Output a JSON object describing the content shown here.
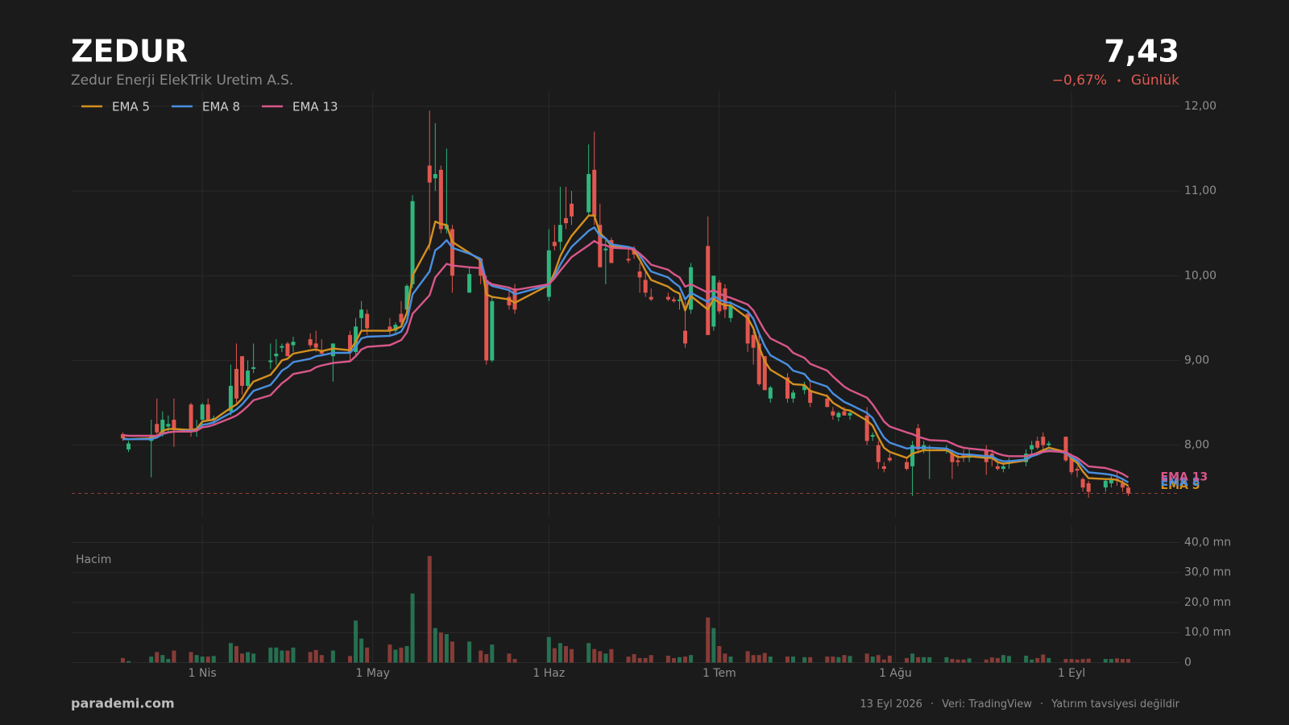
{
  "header": {
    "symbol": "ZEDUR",
    "company": "Zedur Enerji ElekTrik Uretim A.S.",
    "price": "7,43",
    "change": "−0,67%",
    "period": "Günlük"
  },
  "footer": {
    "brand": "parademi.com",
    "date": "13 Eyl 2026",
    "source": "Veri: TradingView",
    "disclaimer": "Yatırım tavsiyesi değildir"
  },
  "chart_data": {
    "type": "candlestick",
    "up_color": "#2fb67d",
    "down_color": "#e0574f",
    "grid": true,
    "x": [
      "2026-03-18",
      "2026-03-19",
      "2026-03-23",
      "2026-03-24",
      "2026-03-25",
      "2026-03-26",
      "2026-03-27",
      "2026-03-30",
      "2026-03-31",
      "2026-04-01",
      "2026-04-02",
      "2026-04-03",
      "2026-04-06",
      "2026-04-07",
      "2026-04-08",
      "2026-04-09",
      "2026-04-10",
      "2026-04-13",
      "2026-04-14",
      "2026-04-15",
      "2026-04-16",
      "2026-04-17",
      "2026-04-20",
      "2026-04-21",
      "2026-04-22",
      "2026-04-24",
      "2026-04-27",
      "2026-04-28",
      "2026-04-29",
      "2026-04-30",
      "2026-05-04",
      "2026-05-05",
      "2026-05-06",
      "2026-05-07",
      "2026-05-08",
      "2026-05-11",
      "2026-05-12",
      "2026-05-13",
      "2026-05-14",
      "2026-05-15",
      "2026-05-18",
      "2026-05-20",
      "2026-05-21",
      "2026-05-22",
      "2026-05-25",
      "2026-05-26",
      "2026-06-01",
      "2026-06-02",
      "2026-06-03",
      "2026-06-04",
      "2026-06-05",
      "2026-06-08",
      "2026-06-09",
      "2026-06-10",
      "2026-06-11",
      "2026-06-12",
      "2026-06-15",
      "2026-06-16",
      "2026-06-17",
      "2026-06-18",
      "2026-06-19",
      "2026-06-22",
      "2026-06-23",
      "2026-06-24",
      "2026-06-25",
      "2026-06-26",
      "2026-06-29",
      "2026-06-30",
      "2026-07-01",
      "2026-07-02",
      "2026-07-03",
      "2026-07-06",
      "2026-07-07",
      "2026-07-08",
      "2026-07-09",
      "2026-07-10",
      "2026-07-13",
      "2026-07-14",
      "2026-07-16",
      "2026-07-17",
      "2026-07-20",
      "2026-07-21",
      "2026-07-22",
      "2026-07-23",
      "2026-07-24",
      "2026-07-27",
      "2026-07-28",
      "2026-07-29",
      "2026-07-30",
      "2026-07-31",
      "2026-08-03",
      "2026-08-04",
      "2026-08-05",
      "2026-08-06",
      "2026-08-07",
      "2026-08-10",
      "2026-08-11",
      "2026-08-12",
      "2026-08-13",
      "2026-08-14",
      "2026-08-17",
      "2026-08-18",
      "2026-08-19",
      "2026-08-20",
      "2026-08-21",
      "2026-08-24",
      "2026-08-25",
      "2026-08-26",
      "2026-08-27",
      "2026-08-28",
      "2026-08-31",
      "2026-09-01",
      "2026-09-02",
      "2026-09-03",
      "2026-09-04",
      "2026-09-07",
      "2026-09-08",
      "2026-09-09",
      "2026-09-10",
      "2026-09-11"
    ],
    "open": [
      8.13,
      7.95,
      8.05,
      8.25,
      8.15,
      8.22,
      8.3,
      8.48,
      8.2,
      8.3,
      8.48,
      8.3,
      8.4,
      8.9,
      9.05,
      8.7,
      8.9,
      8.98,
      9.05,
      9.15,
      9.2,
      9.18,
      9.25,
      9.2,
      9.12,
      9.05,
      9.3,
      9.1,
      9.5,
      9.55,
      9.4,
      9.35,
      9.55,
      9.6,
      9.9,
      11.3,
      11.15,
      11.25,
      10.55,
      10.55,
      9.8,
      10.2,
      9.95,
      9.0,
      9.75,
      9.85,
      9.75,
      10.4,
      10.4,
      10.68,
      10.85,
      10.75,
      11.25,
      10.6,
      10.3,
      10.42,
      10.2,
      10.3,
      10.05,
      9.95,
      9.75,
      9.75,
      9.72,
      9.7,
      9.35,
      9.6,
      10.35,
      9.4,
      9.92,
      9.85,
      9.5,
      9.55,
      9.3,
      9.2,
      9.05,
      8.55,
      8.8,
      8.55,
      8.65,
      8.65,
      8.55,
      8.4,
      8.33,
      8.4,
      8.35,
      8.35,
      8.1,
      8.0,
      7.75,
      7.85,
      7.8,
      7.75,
      8.2,
      7.95,
      7.95,
      7.95,
      7.9,
      7.82,
      7.88,
      7.85,
      7.95,
      7.9,
      7.75,
      7.72,
      7.78,
      7.8,
      7.95,
      8.05,
      8.1,
      8.0,
      8.1,
      7.85,
      7.72,
      7.6,
      7.55,
      7.5,
      7.55,
      7.6,
      7.55,
      7.5
    ],
    "high": [
      8.15,
      8.05,
      8.3,
      8.55,
      8.4,
      8.35,
      8.55,
      8.5,
      8.3,
      8.5,
      8.55,
      8.35,
      8.95,
      9.2,
      9.05,
      9.0,
      9.2,
      9.2,
      9.25,
      9.2,
      9.22,
      9.28,
      9.32,
      9.35,
      9.25,
      9.2,
      9.35,
      9.5,
      9.7,
      9.6,
      9.5,
      9.45,
      9.7,
      9.9,
      10.95,
      11.95,
      11.8,
      11.3,
      11.5,
      10.6,
      10.1,
      10.2,
      10.0,
      9.75,
      9.85,
      9.9,
      10.55,
      10.6,
      11.05,
      11.05,
      11.0,
      11.55,
      11.7,
      10.85,
      10.45,
      10.45,
      10.35,
      10.35,
      10.15,
      10.05,
      9.85,
      9.8,
      9.75,
      9.8,
      9.7,
      10.15,
      10.7,
      10.0,
      9.95,
      9.9,
      9.7,
      9.6,
      9.35,
      9.3,
      9.05,
      8.7,
      8.85,
      8.65,
      8.75,
      8.75,
      8.6,
      8.45,
      8.4,
      8.45,
      8.4,
      8.45,
      8.15,
      8.05,
      7.8,
      7.9,
      7.85,
      8.05,
      8.25,
      8.05,
      8.0,
      8.0,
      7.95,
      7.9,
      7.95,
      7.95,
      8.0,
      7.95,
      7.8,
      7.8,
      7.85,
      7.95,
      8.05,
      8.1,
      8.15,
      8.05,
      8.1,
      7.9,
      7.75,
      7.62,
      7.58,
      7.6,
      7.65,
      7.68,
      7.6,
      7.52
    ],
    "low": [
      8.05,
      7.92,
      7.62,
      8.1,
      8.1,
      8.15,
      7.98,
      8.1,
      8.1,
      8.2,
      8.3,
      8.25,
      8.35,
      8.5,
      8.6,
      8.65,
      8.85,
      8.9,
      8.95,
      9.1,
      9.05,
      9.1,
      9.15,
      9.1,
      9.05,
      8.75,
      9.0,
      9.05,
      9.35,
      9.3,
      9.3,
      9.3,
      9.4,
      9.55,
      9.85,
      10.3,
      11.0,
      10.5,
      10.5,
      9.8,
      9.8,
      9.9,
      8.95,
      8.98,
      9.6,
      9.55,
      9.7,
      10.3,
      10.3,
      10.55,
      10.6,
      10.7,
      10.6,
      10.1,
      9.9,
      10.15,
      10.15,
      10.2,
      9.8,
      9.75,
      9.7,
      9.7,
      9.68,
      9.6,
      9.15,
      9.55,
      9.3,
      9.35,
      9.55,
      9.5,
      9.45,
      9.1,
      8.95,
      8.7,
      8.65,
      8.5,
      8.5,
      8.5,
      8.6,
      8.45,
      8.45,
      8.3,
      8.28,
      8.35,
      8.3,
      8.0,
      8.05,
      7.72,
      7.68,
      7.8,
      7.7,
      7.4,
      7.9,
      7.9,
      7.6,
      7.9,
      7.6,
      7.75,
      7.8,
      7.8,
      7.65,
      7.75,
      7.7,
      7.68,
      7.72,
      7.75,
      7.9,
      7.95,
      7.95,
      7.98,
      7.8,
      7.65,
      7.62,
      7.45,
      7.38,
      7.45,
      7.5,
      7.52,
      7.45,
      7.4
    ],
    "close": [
      8.08,
      8.02,
      8.12,
      8.15,
      8.3,
      8.25,
      8.18,
      8.18,
      8.2,
      8.48,
      8.3,
      8.32,
      8.7,
      8.55,
      8.7,
      8.88,
      8.92,
      9.0,
      9.08,
      9.17,
      9.05,
      9.22,
      9.18,
      9.15,
      9.08,
      9.2,
      9.1,
      9.4,
      9.6,
      9.38,
      9.35,
      9.42,
      9.45,
      9.88,
      10.88,
      11.1,
      11.2,
      10.55,
      10.6,
      10.0,
      10.02,
      10.0,
      9.0,
      9.7,
      9.65,
      9.6,
      10.3,
      10.35,
      10.6,
      10.62,
      10.7,
      11.2,
      10.7,
      10.1,
      10.32,
      10.15,
      10.18,
      10.25,
      9.98,
      9.8,
      9.72,
      9.72,
      9.7,
      9.72,
      9.2,
      10.1,
      9.3,
      10.0,
      9.58,
      9.6,
      9.65,
      9.2,
      9.15,
      8.72,
      8.65,
      8.68,
      8.55,
      8.62,
      8.7,
      8.5,
      8.45,
      8.35,
      8.38,
      8.35,
      8.38,
      8.05,
      8.12,
      7.8,
      7.72,
      7.82,
      7.72,
      8.0,
      7.95,
      8.0,
      7.95,
      7.95,
      7.8,
      7.8,
      7.85,
      7.9,
      7.8,
      7.85,
      7.72,
      7.75,
      7.8,
      7.9,
      8.0,
      7.97,
      8.0,
      8.02,
      7.82,
      7.68,
      7.7,
      7.5,
      7.45,
      7.58,
      7.6,
      7.58,
      7.5,
      7.43
    ],
    "series": [
      {
        "name": "EMA 5",
        "color": "#d4901f",
        "values": [
          8.08,
          8.07,
          8.08,
          8.1,
          8.17,
          8.19,
          8.19,
          8.18,
          8.19,
          8.28,
          8.29,
          8.3,
          8.44,
          8.48,
          8.55,
          8.66,
          8.75,
          8.83,
          8.91,
          9.0,
          9.02,
          9.08,
          9.12,
          9.13,
          9.11,
          9.14,
          9.12,
          9.22,
          9.35,
          9.35,
          9.35,
          9.37,
          9.4,
          9.56,
          10.0,
          10.37,
          10.64,
          10.61,
          10.6,
          10.4,
          10.27,
          10.18,
          9.78,
          9.75,
          9.72,
          9.68,
          9.89,
          10.04,
          10.23,
          10.36,
          10.47,
          10.71,
          10.71,
          10.5,
          10.44,
          10.35,
          10.33,
          10.3,
          10.19,
          10.06,
          9.95,
          9.87,
          9.82,
          9.79,
          9.59,
          9.76,
          9.6,
          9.73,
          9.68,
          9.65,
          9.65,
          9.5,
          9.38,
          9.16,
          8.99,
          8.89,
          8.77,
          8.72,
          8.71,
          8.64,
          8.58,
          8.5,
          8.46,
          8.42,
          8.41,
          8.29,
          8.23,
          8.09,
          7.97,
          7.92,
          7.85,
          7.9,
          7.92,
          7.94,
          7.94,
          7.94,
          7.9,
          7.86,
          7.86,
          7.87,
          7.85,
          7.85,
          7.8,
          7.78,
          7.79,
          7.82,
          7.88,
          7.91,
          7.94,
          7.97,
          7.92,
          7.84,
          7.79,
          7.69,
          7.61,
          7.6,
          7.6,
          7.59,
          7.56,
          7.52
        ]
      },
      {
        "name": "EMA 8",
        "color": "#4a8fe0",
        "values": [
          8.07,
          8.07,
          8.07,
          8.09,
          8.13,
          8.15,
          8.16,
          8.17,
          8.17,
          8.24,
          8.25,
          8.27,
          8.38,
          8.42,
          8.48,
          8.56,
          8.64,
          8.71,
          8.79,
          8.88,
          8.92,
          8.98,
          9.02,
          9.05,
          9.06,
          9.09,
          9.09,
          9.16,
          9.26,
          9.28,
          9.29,
          9.31,
          9.34,
          9.46,
          9.78,
          10.05,
          10.3,
          10.35,
          10.42,
          10.33,
          10.26,
          10.2,
          9.93,
          9.88,
          9.83,
          9.78,
          9.89,
          9.99,
          10.13,
          10.24,
          10.34,
          10.53,
          10.57,
          10.47,
          10.44,
          10.37,
          10.34,
          10.32,
          10.24,
          10.14,
          10.05,
          9.98,
          9.92,
          9.87,
          9.72,
          9.8,
          9.69,
          9.76,
          9.72,
          9.69,
          9.68,
          9.58,
          9.49,
          9.32,
          9.17,
          9.06,
          8.95,
          8.88,
          8.84,
          8.76,
          8.69,
          8.61,
          8.56,
          8.51,
          8.48,
          8.38,
          8.32,
          8.2,
          8.09,
          8.03,
          7.96,
          7.97,
          7.97,
          7.97,
          7.97,
          7.96,
          7.93,
          7.9,
          7.89,
          7.89,
          7.87,
          7.87,
          7.83,
          7.81,
          7.81,
          7.83,
          7.87,
          7.89,
          7.92,
          7.94,
          7.91,
          7.86,
          7.82,
          7.75,
          7.68,
          7.66,
          7.65,
          7.63,
          7.6,
          7.56
        ]
      },
      {
        "name": "EMA 13",
        "color": "#d9578a",
        "values": [
          8.12,
          8.11,
          8.11,
          8.11,
          8.14,
          8.15,
          8.16,
          8.16,
          8.17,
          8.21,
          8.22,
          8.24,
          8.32,
          8.35,
          8.4,
          8.46,
          8.53,
          8.59,
          8.66,
          8.73,
          8.78,
          8.84,
          8.88,
          8.92,
          8.94,
          8.97,
          8.99,
          9.05,
          9.13,
          9.16,
          9.18,
          9.21,
          9.24,
          9.33,
          9.55,
          9.77,
          9.98,
          10.06,
          10.14,
          10.12,
          10.1,
          10.09,
          9.94,
          9.9,
          9.86,
          9.83,
          9.9,
          9.97,
          10.06,
          10.14,
          10.22,
          10.36,
          10.41,
          10.37,
          10.36,
          10.33,
          10.32,
          10.31,
          10.26,
          10.2,
          10.13,
          10.07,
          10.02,
          9.98,
          9.87,
          9.9,
          9.8,
          9.83,
          9.79,
          9.76,
          9.74,
          9.66,
          9.59,
          9.47,
          9.35,
          9.26,
          9.16,
          9.09,
          9.03,
          8.96,
          8.88,
          8.81,
          8.75,
          8.69,
          8.65,
          8.56,
          8.48,
          8.38,
          8.28,
          8.22,
          8.15,
          8.13,
          8.1,
          8.08,
          8.06,
          8.05,
          8.02,
          7.99,
          7.97,
          7.96,
          7.94,
          7.93,
          7.9,
          7.88,
          7.87,
          7.87,
          7.89,
          7.9,
          7.92,
          7.93,
          7.92,
          7.88,
          7.85,
          7.8,
          7.75,
          7.73,
          7.71,
          7.69,
          7.66,
          7.62
        ]
      }
    ],
    "xlim": [
      "2026-03-09",
      "2026-09-20"
    ],
    "xticks": [
      {
        "value": "2026-04-01",
        "label": "1 Nis"
      },
      {
        "value": "2026-05-01",
        "label": "1 May"
      },
      {
        "value": "2026-06-01",
        "label": "1 Haz"
      },
      {
        "value": "2026-07-01",
        "label": "1 Tem"
      },
      {
        "value": "2026-08-01",
        "label": "1 Ağu"
      },
      {
        "value": "2026-09-01",
        "label": "1 Eyl"
      }
    ],
    "ylim": [
      7.15,
      12.18
    ],
    "yticks": [
      {
        "value": 8,
        "label": "8,00"
      },
      {
        "value": 9,
        "label": "9,00"
      },
      {
        "value": 10,
        "label": "10,00"
      },
      {
        "value": 11,
        "label": "11,00"
      },
      {
        "value": 12,
        "label": "12,00"
      }
    ],
    "volume_label": "Hacim",
    "volume": [
      1.5,
      0.5,
      2.0,
      3.5,
      2.5,
      1.2,
      4.0,
      3.5,
      2.5,
      2.0,
      2.0,
      2.2,
      6.5,
      5.5,
      3.0,
      3.5,
      3.0,
      5.0,
      5.0,
      4.0,
      4.0,
      5.0,
      3.5,
      4.2,
      2.5,
      4.0,
      2.2,
      14.0,
      8.0,
      5.0,
      6.0,
      4.3,
      5.0,
      5.5,
      23.0,
      35.5,
      11.5,
      10.0,
      9.5,
      7.0,
      7.0,
      4.0,
      2.8,
      6.0,
      3.0,
      1.2,
      8.5,
      4.8,
      6.5,
      5.5,
      4.5,
      6.5,
      4.5,
      3.8,
      3.0,
      4.5,
      2.0,
      2.8,
      1.5,
      1.5,
      2.5,
      2.3,
      1.5,
      1.8,
      2.0,
      2.5,
      15.0,
      11.5,
      5.5,
      3.0,
      2.0,
      3.8,
      2.5,
      2.5,
      3.2,
      2.0,
      2.0,
      2.0,
      1.8,
      1.8,
      2.0,
      2.0,
      1.8,
      2.5,
      2.2,
      3.0,
      2.0,
      2.5,
      1.0,
      2.3,
      1.5,
      3.0,
      1.8,
      1.8,
      1.8,
      1.8,
      1.2,
      1.0,
      1.0,
      1.4,
      1.0,
      1.7,
      1.5,
      2.5,
      2.2,
      2.3,
      1.0,
      1.5,
      2.7,
      1.5,
      1.2,
      1.2,
      1.0,
      1.2,
      1.3,
      1.2,
      1.2,
      1.4,
      1.2,
      1.2
    ],
    "volume_ylim": [
      0,
      42
    ],
    "volume_yticks": [
      0,
      {
        "value": 10,
        "label": "10,0 mn"
      },
      {
        "value": 20,
        "label": "20,0 mn"
      },
      {
        "value": 30,
        "label": "30,0 mn"
      },
      {
        "value": 40,
        "label": "40,0 mn"
      }
    ]
  }
}
